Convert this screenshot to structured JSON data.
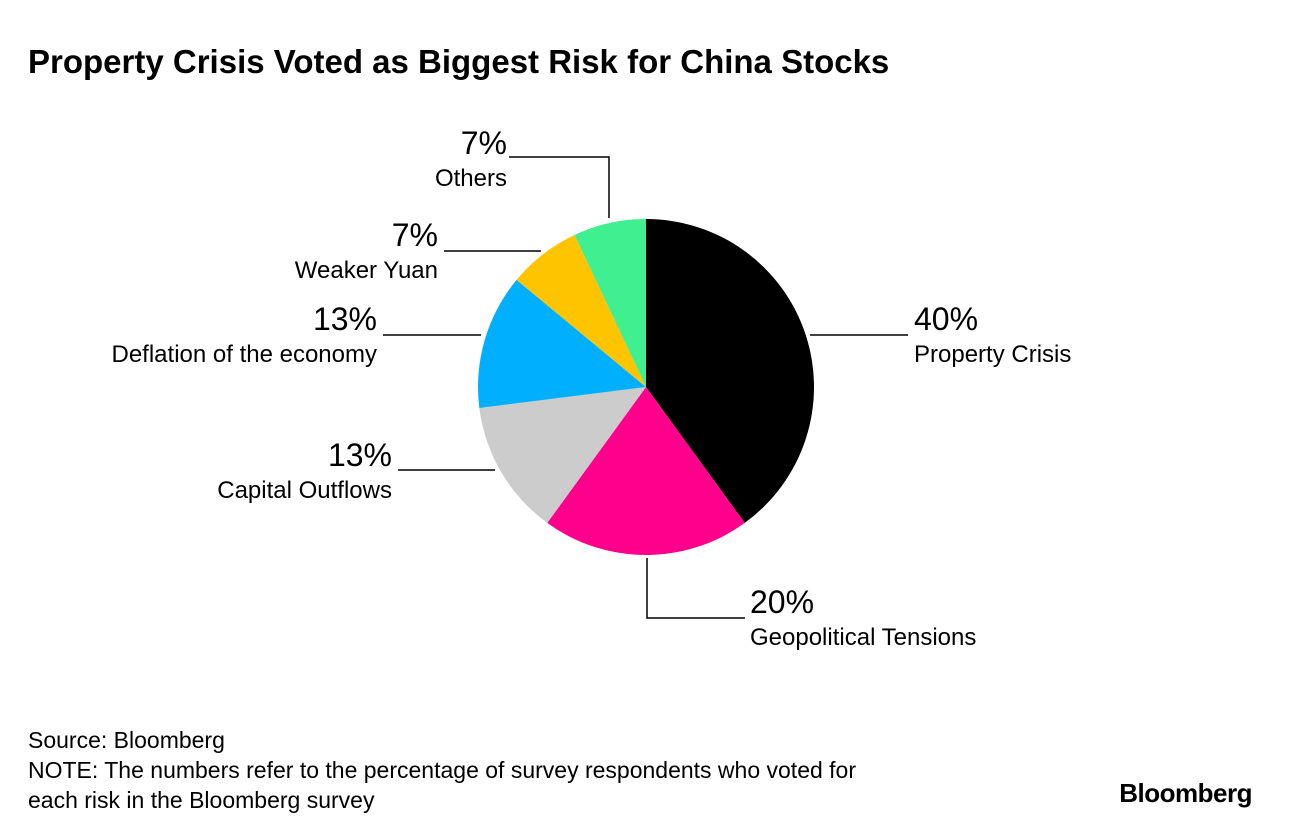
{
  "chart_data": {
    "type": "pie",
    "title": "Property Crisis Voted as Biggest Risk for China Stocks",
    "slices": [
      {
        "label": "Property Crisis",
        "value": 40,
        "value_label": "40%",
        "color": "#000000"
      },
      {
        "label": "Geopolitical Tensions",
        "value": 20,
        "value_label": "20%",
        "color": "#ff008c"
      },
      {
        "label": "Capital Outflows",
        "value": 13,
        "value_label": "13%",
        "color": "#cccccc"
      },
      {
        "label": "Deflation of the economy",
        "value": 13,
        "value_label": "13%",
        "color": "#00b0ff"
      },
      {
        "label": "Weaker Yuan",
        "value": 7,
        "value_label": "7%",
        "color": "#ffc400"
      },
      {
        "label": "Others",
        "value": 7,
        "value_label": "7%",
        "color": "#40f090"
      }
    ],
    "start_angle": "12 o'clock",
    "direction": "clockwise"
  },
  "footer": {
    "source": "Source: Bloomberg",
    "note_line1": "NOTE: The numbers refer to the percentage of survey respondents who voted for",
    "note_line2": "each risk in the Bloomberg survey",
    "logo": "Bloomberg"
  }
}
